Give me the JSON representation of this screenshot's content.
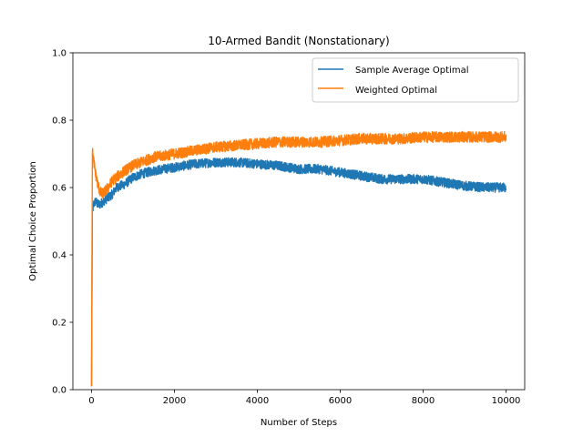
{
  "chart_data": {
    "type": "line",
    "title": "10-Armed Bandit (Nonstationary)",
    "xlabel": "Number of Steps",
    "ylabel": "Optimal Choice Proportion",
    "xlim": [
      -450,
      10450
    ],
    "ylim": [
      0.0,
      1.0
    ],
    "xticks": [
      0,
      2000,
      4000,
      6000,
      8000,
      10000
    ],
    "xtick_labels": [
      "0",
      "2000",
      "4000",
      "6000",
      "8000",
      "10000"
    ],
    "yticks": [
      0.0,
      0.2,
      0.4,
      0.6,
      0.8,
      1.0
    ],
    "ytick_labels": [
      "0.0",
      "0.2",
      "0.4",
      "0.6",
      "0.8",
      "1.0"
    ],
    "grid": false,
    "legend_position": "top-right",
    "series": [
      {
        "name": "Sample Average Optimal",
        "color": "#1f77b4",
        "x": [
          0,
          20,
          50,
          100,
          150,
          200,
          300,
          400,
          500,
          600,
          800,
          1000,
          1200,
          1500,
          2000,
          2500,
          3000,
          3500,
          4000,
          4500,
          5000,
          5500,
          6000,
          6500,
          7000,
          7500,
          8000,
          8500,
          9000,
          9500,
          10000
        ],
        "y": [
          0.01,
          0.53,
          0.55,
          0.56,
          0.55,
          0.55,
          0.56,
          0.57,
          0.58,
          0.6,
          0.61,
          0.63,
          0.64,
          0.65,
          0.66,
          0.67,
          0.675,
          0.675,
          0.67,
          0.665,
          0.655,
          0.655,
          0.645,
          0.635,
          0.625,
          0.625,
          0.625,
          0.615,
          0.605,
          0.6,
          0.6
        ],
        "band": 0.014
      },
      {
        "name": "Weighted Optimal",
        "color": "#ff7f0e",
        "x": [
          0,
          20,
          50,
          100,
          150,
          200,
          250,
          300,
          400,
          500,
          600,
          800,
          1000,
          1200,
          1500,
          2000,
          2500,
          3000,
          3500,
          4000,
          4500,
          5000,
          5500,
          6000,
          6500,
          7000,
          7500,
          8000,
          8500,
          9000,
          9500,
          10000
        ],
        "y": [
          0.01,
          0.71,
          0.68,
          0.64,
          0.61,
          0.59,
          0.58,
          0.585,
          0.6,
          0.62,
          0.63,
          0.65,
          0.665,
          0.675,
          0.69,
          0.7,
          0.71,
          0.72,
          0.725,
          0.73,
          0.735,
          0.735,
          0.735,
          0.74,
          0.745,
          0.745,
          0.745,
          0.75,
          0.75,
          0.75,
          0.75,
          0.75
        ],
        "band": 0.016
      }
    ]
  }
}
